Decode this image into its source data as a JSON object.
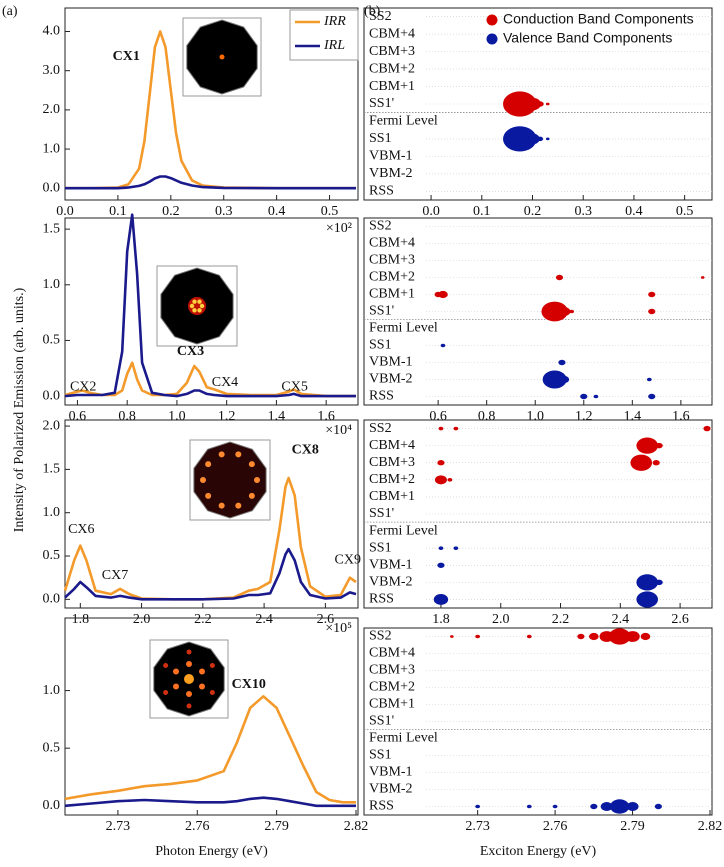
{
  "chart_data": [
    {
      "type": "line",
      "panel_label": "(a)",
      "ylabel": "Intensity of Polarized Emission (arb. units.)",
      "legend": true,
      "xlim": [
        0,
        0.55
      ],
      "xticks": [
        {
          "value": 0,
          "label": "0.0"
        },
        0.1,
        0.2,
        0.3,
        0.4,
        0.5
      ],
      "ylim": [
        -0.3,
        4.6
      ],
      "yticks": [
        {
          "value": 0,
          "label": "0.0"
        },
        {
          "value": 1,
          "label": "1.0"
        },
        {
          "value": 2,
          "label": "2.0"
        },
        {
          "value": 3,
          "label": "3.0"
        },
        {
          "value": 4,
          "label": "4.0"
        }
      ],
      "x": [
        0,
        0.05,
        0.1,
        0.12,
        0.14,
        0.15,
        0.16,
        0.17,
        0.18,
        0.19,
        0.2,
        0.21,
        0.22,
        0.24,
        0.26,
        0.3,
        0.4,
        0.55
      ],
      "series": [
        {
          "name": "IRR",
          "color": "#f39a2b",
          "values": [
            0,
            0,
            0.02,
            0.1,
            0.5,
            1.2,
            2.4,
            3.6,
            4.0,
            3.6,
            2.5,
            1.4,
            0.7,
            0.2,
            0.07,
            0.02,
            0,
            0
          ]
        },
        {
          "name": "IRL",
          "color": "#1a1a8c",
          "values": [
            0,
            0,
            0,
            0.02,
            0.06,
            0.1,
            0.17,
            0.25,
            0.3,
            0.3,
            0.26,
            0.2,
            0.14,
            0.07,
            0.03,
            0.01,
            0,
            0
          ]
        }
      ],
      "annotations": [
        {
          "text": "CX1",
          "x": 0.09,
          "y": 3.35,
          "bold": true
        }
      ]
    },
    {
      "type": "line",
      "multiplier": "×10²",
      "xlim": [
        0.55,
        1.72
      ],
      "xticks": [
        0.6,
        0.8,
        {
          "value": 1,
          "label": "1.0"
        },
        1.2,
        1.4,
        1.6
      ],
      "ylim": [
        -0.08,
        1.6
      ],
      "yticks": [
        {
          "value": 0,
          "label": "0.0"
        },
        0.5,
        {
          "value": 1,
          "label": "1.0"
        },
        1.5
      ],
      "x": [
        0.55,
        0.6,
        0.62,
        0.65,
        0.7,
        0.75,
        0.78,
        0.8,
        0.82,
        0.84,
        0.86,
        0.9,
        0.95,
        1.0,
        1.04,
        1.07,
        1.09,
        1.12,
        1.15,
        1.2,
        1.3,
        1.4,
        1.45,
        1.47,
        1.5,
        1.6,
        1.72
      ],
      "series": [
        {
          "color": "#f39a2b",
          "values": [
            0.01,
            0.04,
            0.05,
            0.03,
            0.01,
            0.01,
            0.05,
            0.2,
            0.3,
            0.15,
            0.05,
            0.01,
            0.01,
            0.02,
            0.12,
            0.27,
            0.22,
            0.08,
            0.06,
            0.02,
            0.01,
            0.01,
            0.04,
            0.06,
            0.02,
            0,
            0
          ]
        },
        {
          "color": "#1a1a8c",
          "values": [
            0,
            0.01,
            0.01,
            0.01,
            0.01,
            0.03,
            0.4,
            1.3,
            1.63,
            1.1,
            0.3,
            0.03,
            0.01,
            0,
            0.02,
            0.05,
            0.05,
            0.02,
            0.01,
            0,
            0,
            0,
            0.01,
            0.02,
            0,
            0,
            0
          ]
        }
      ],
      "annotations": [
        {
          "text": "CX2",
          "x": 0.57,
          "y": 0.08
        },
        {
          "text": "CX3",
          "x": 1.0,
          "y": 0.4,
          "bold": true
        },
        {
          "text": "CX4",
          "x": 1.14,
          "y": 0.12
        },
        {
          "text": "CX5",
          "x": 1.42,
          "y": 0.08
        }
      ]
    },
    {
      "type": "line",
      "multiplier": "×10⁴",
      "xlim": [
        1.75,
        2.7
      ],
      "xticks": [
        1.8,
        {
          "value": 2,
          "label": "2.0"
        },
        2.2,
        2.4,
        2.6
      ],
      "ylim": [
        -0.1,
        2.07
      ],
      "yticks": [
        {
          "value": 0,
          "label": "0.0"
        },
        0.5,
        {
          "value": 1,
          "label": "1.0"
        },
        1.5,
        {
          "value": 2,
          "label": "2.0"
        }
      ],
      "x": [
        1.75,
        1.78,
        1.8,
        1.82,
        1.85,
        1.9,
        1.93,
        1.96,
        2.0,
        2.1,
        2.2,
        2.3,
        2.35,
        2.38,
        2.42,
        2.45,
        2.47,
        2.48,
        2.5,
        2.52,
        2.55,
        2.6,
        2.65,
        2.68,
        2.7
      ],
      "series": [
        {
          "color": "#f39a2b",
          "values": [
            0.1,
            0.45,
            0.62,
            0.45,
            0.1,
            0.06,
            0.12,
            0.06,
            0.01,
            0,
            0,
            0.02,
            0.1,
            0.12,
            0.2,
            0.8,
            1.3,
            1.4,
            1.2,
            0.6,
            0.15,
            0.03,
            0.05,
            0.25,
            0.2
          ]
        },
        {
          "color": "#1a1a8c",
          "values": [
            0.02,
            0.12,
            0.2,
            0.14,
            0.04,
            0.02,
            0.04,
            0.02,
            0,
            0,
            0,
            0.01,
            0.05,
            0.05,
            0.07,
            0.3,
            0.52,
            0.58,
            0.45,
            0.2,
            0.05,
            0.01,
            0.02,
            0.08,
            0.06
          ]
        }
      ],
      "annotations": [
        {
          "text": "CX6",
          "x": 1.76,
          "y": 0.8
        },
        {
          "text": "CX7",
          "x": 1.87,
          "y": 0.27
        },
        {
          "text": "CX8",
          "x": 2.49,
          "y": 1.72,
          "bold": true
        },
        {
          "text": "CX9",
          "x": 2.63,
          "y": 0.45
        }
      ]
    },
    {
      "type": "line",
      "multiplier": "×10⁵",
      "xlabel": "Photon Energy (eV)",
      "xlim": [
        2.71,
        2.82
      ],
      "xticks": [
        2.73,
        2.76,
        2.79,
        2.82
      ],
      "ylim": [
        -0.08,
        1.63
      ],
      "yticks": [
        {
          "value": 0,
          "label": "0.0"
        },
        0.5,
        {
          "value": 1,
          "label": "1.0"
        }
      ],
      "x": [
        2.71,
        2.72,
        2.73,
        2.74,
        2.75,
        2.76,
        2.77,
        2.775,
        2.78,
        2.785,
        2.79,
        2.795,
        2.8,
        2.805,
        2.81,
        2.815,
        2.82
      ],
      "series": [
        {
          "color": "#f39a2b",
          "values": [
            0.06,
            0.1,
            0.13,
            0.17,
            0.19,
            0.22,
            0.3,
            0.55,
            0.85,
            0.95,
            0.85,
            0.6,
            0.35,
            0.12,
            0.05,
            0.03,
            0.03
          ]
        },
        {
          "color": "#1a1a8c",
          "values": [
            0,
            0.02,
            0.04,
            0.05,
            0.04,
            0.03,
            0.03,
            0.04,
            0.06,
            0.07,
            0.06,
            0.04,
            0.02,
            0,
            0,
            0,
            0
          ]
        }
      ],
      "annotations": [
        {
          "text": "CX10",
          "x": 2.773,
          "y": 1.05,
          "bold": true
        }
      ]
    },
    {
      "type": "bubble",
      "panel_label": "(b)",
      "legend": true,
      "reference_level": 6,
      "xlim": [
        -0.01,
        0.55
      ],
      "xticks": [
        {
          "value": 0,
          "label": "0.0"
        },
        0.1,
        0.2,
        0.3,
        0.4,
        0.5
      ],
      "categories": [
        "SS2",
        "CBM+4",
        "CBM+3",
        "CBM+2",
        "CBM+1",
        "SS1'",
        "Fermi Level",
        "SS1",
        "VBM-1",
        "VBM-2",
        "RSS"
      ],
      "series": [
        {
          "name": "Conduction Band Components",
          "color": "#d40000",
          "x": [
            0.175,
            0.2,
            0.215,
            0.23
          ],
          "values": [
            5,
            5,
            5,
            5
          ],
          "sizes": [
            14,
            7,
            3,
            1.5
          ]
        },
        {
          "name": "Valence Band Components",
          "color": "#0a1aa0",
          "x": [
            0.175,
            0.2,
            0.215,
            0.23
          ],
          "values": [
            7,
            7,
            7,
            7
          ],
          "sizes": [
            14,
            6,
            2.5,
            1.5
          ]
        }
      ]
    },
    {
      "type": "bubble",
      "reference_level": 6,
      "xlim": [
        0.55,
        1.72
      ],
      "xticks": [
        0.6,
        0.8,
        {
          "value": 1,
          "label": "1.0"
        },
        1.2,
        1.4,
        1.6
      ],
      "categories": [
        "SS2",
        "CBM+4",
        "CBM+3",
        "CBM+2",
        "CBM+1",
        "SS1'",
        "Fermi Level",
        "SS1",
        "VBM-1",
        "VBM-2",
        "RSS"
      ],
      "series": [
        {
          "color": "#d40000",
          "x": [
            0.6,
            0.62,
            1.48,
            1.1,
            1.08,
            1.12,
            1.15,
            1.48,
            1.69
          ],
          "values": [
            4,
            4,
            4,
            3,
            5,
            5,
            5,
            5,
            3
          ],
          "sizes": [
            3,
            4,
            3,
            3,
            11,
            5,
            2,
            3,
            1.5
          ]
        },
        {
          "color": "#0a1aa0",
          "x": [
            0.62,
            1.11,
            1.08,
            1.12,
            1.47,
            1.2,
            1.25,
            1.48
          ],
          "values": [
            7,
            8,
            9,
            9,
            9,
            10,
            10,
            10
          ],
          "sizes": [
            2,
            3,
            10,
            4,
            2,
            3,
            2,
            3
          ]
        }
      ]
    },
    {
      "type": "bubble",
      "reference_level": 6,
      "xlim": [
        1.75,
        2.7
      ],
      "xticks": [
        1.8,
        {
          "value": 2,
          "label": "2.0"
        },
        2.2,
        2.4,
        2.6
      ],
      "categories": [
        "SS2",
        "CBM+4",
        "CBM+3",
        "CBM+2",
        "CBM+1",
        "SS1'",
        "Fermi Level",
        "SS1",
        "VBM-1",
        "VBM-2",
        "RSS"
      ],
      "series": [
        {
          "color": "#d40000",
          "x": [
            1.8,
            1.85,
            2.69,
            2.49,
            2.53,
            1.8,
            2.47,
            2.52,
            1.8,
            1.83
          ],
          "values": [
            0,
            0,
            0,
            1,
            1,
            2,
            2,
            2,
            3,
            3
          ],
          "sizes": [
            2,
            2,
            3,
            9,
            3,
            3,
            9,
            3,
            5,
            2
          ]
        },
        {
          "color": "#0a1aa0",
          "x": [
            1.8,
            1.85,
            1.8,
            2.49,
            2.53,
            1.8,
            2.49
          ],
          "values": [
            7,
            7,
            8,
            9,
            9,
            10,
            10
          ],
          "sizes": [
            2,
            2,
            3,
            9,
            3,
            6,
            9
          ]
        }
      ]
    },
    {
      "type": "bubble",
      "reference_level": 6,
      "xlabel": "Exciton Energy (eV)",
      "xlim": [
        2.71,
        2.82
      ],
      "xticks": [
        2.73,
        2.76,
        2.79,
        2.82
      ],
      "categories": [
        "SS2",
        "CBM+4",
        "CBM+3",
        "CBM+2",
        "CBM+1",
        "SS1'",
        "Fermi Level",
        "SS1",
        "VBM-1",
        "VBM-2",
        "RSS"
      ],
      "series": [
        {
          "color": "#d40000",
          "x": [
            2.72,
            2.73,
            2.75,
            2.77,
            2.775,
            2.78,
            2.785,
            2.79,
            2.795
          ],
          "values": [
            0,
            0,
            0,
            0,
            0,
            0,
            0,
            0,
            0
          ],
          "sizes": [
            1.5,
            2,
            2,
            3,
            4,
            6,
            9,
            6,
            4
          ]
        },
        {
          "color": "#0a1aa0",
          "x": [
            2.73,
            2.75,
            2.76,
            2.775,
            2.78,
            2.785,
            2.79,
            2.8
          ],
          "values": [
            10,
            10,
            10,
            10,
            10,
            10,
            10,
            10
          ],
          "sizes": [
            2,
            2,
            2,
            3,
            5,
            8,
            5,
            3
          ]
        }
      ]
    }
  ]
}
